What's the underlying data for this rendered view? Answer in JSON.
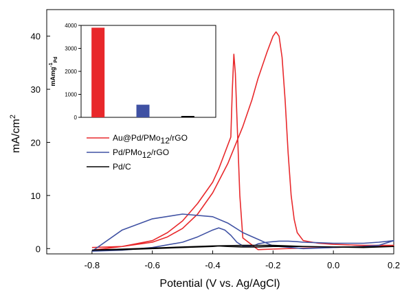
{
  "chart_data": [
    {
      "type": "line",
      "xlabel": "Potential (V vs. Ag/AgCl)",
      "ylabel": "mA/cm",
      "ylabel_sup": "2",
      "xlim": [
        -0.95,
        0.2
      ],
      "ylim": [
        -1,
        45
      ],
      "xticks": [
        -0.8,
        -0.6,
        -0.4,
        -0.2,
        0.0,
        0.2
      ],
      "xtick_labels": [
        "-0.8",
        "-0.6",
        "-0.4",
        "-0.2",
        "0.0",
        "0.2"
      ],
      "yticks": [
        0,
        10,
        20,
        30,
        40
      ],
      "ytick_labels": [
        "0",
        "10",
        "20",
        "30",
        "40"
      ],
      "grid": false,
      "legend_position": "middle-left",
      "series": [
        {
          "name_main": "Au@Pd/PMo",
          "name_sub": "12",
          "name_tail": "/rGO",
          "color": "#e8282b",
          "x": [
            -0.8,
            -0.7,
            -0.6,
            -0.55,
            -0.5,
            -0.45,
            -0.4,
            -0.35,
            -0.3,
            -0.27,
            -0.25,
            -0.22,
            -0.2,
            -0.19,
            -0.18,
            -0.17,
            -0.16,
            -0.15,
            -0.14,
            -0.13,
            -0.12,
            -0.1,
            -0.05,
            0.0,
            0.1,
            0.2,
            0.1,
            0.0,
            -0.1,
            -0.2,
            -0.25,
            -0.3,
            -0.31,
            -0.32,
            -0.325,
            -0.33,
            -0.335,
            -0.34,
            -0.36,
            -0.38,
            -0.4,
            -0.45,
            -0.5,
            -0.55,
            -0.6,
            -0.7,
            -0.8
          ],
          "y": [
            0.2,
            0.4,
            1.2,
            2.2,
            3.8,
            6.5,
            10.5,
            16.0,
            23.0,
            28.0,
            32.0,
            37.0,
            40.0,
            40.8,
            40.0,
            36.0,
            28.0,
            18.0,
            10.0,
            5.5,
            3.0,
            1.5,
            1.0,
            0.8,
            0.6,
            0.6,
            0.4,
            0.2,
            0.1,
            -0.1,
            -0.2,
            2.0,
            10.0,
            25.0,
            33.0,
            36.6,
            30.0,
            21.0,
            18.0,
            15.0,
            12.5,
            8.5,
            5.2,
            3.0,
            1.5,
            0.4,
            -0.3
          ]
        },
        {
          "name_main": "Pd/PMo",
          "name_sub": "12",
          "name_tail": "/rGO",
          "color": "#3f51a3",
          "x": [
            -0.8,
            -0.7,
            -0.6,
            -0.5,
            -0.45,
            -0.4,
            -0.38,
            -0.36,
            -0.34,
            -0.32,
            -0.3,
            -0.28,
            -0.26,
            -0.25,
            -0.22,
            -0.2,
            -0.18,
            -0.15,
            -0.12,
            -0.1,
            -0.05,
            0.0,
            0.05,
            0.1,
            0.15,
            0.2,
            0.15,
            0.1,
            0.0,
            -0.1,
            -0.2,
            -0.3,
            -0.35,
            -0.4,
            -0.5,
            -0.6,
            -0.7,
            -0.8
          ],
          "y": [
            -0.5,
            -0.3,
            0.2,
            1.2,
            2.2,
            3.5,
            3.9,
            3.5,
            2.5,
            1.2,
            0.5,
            0.5,
            0.6,
            0.9,
            1.2,
            1.3,
            1.4,
            1.4,
            1.3,
            1.2,
            1.1,
            1.0,
            1.0,
            1.0,
            1.2,
            1.5,
            0.6,
            0.4,
            0.2,
            0.0,
            0.5,
            3.0,
            4.8,
            6.0,
            6.5,
            5.6,
            3.5,
            -0.5
          ]
        },
        {
          "name_main": "Pd/C",
          "name_sub": "",
          "name_tail": "",
          "color": "#000000",
          "x": [
            -0.8,
            -0.7,
            -0.6,
            -0.5,
            -0.45,
            -0.4,
            -0.38,
            -0.35,
            -0.3,
            -0.25,
            -0.2,
            -0.1,
            0.0,
            0.1,
            0.2,
            0.1,
            0.0,
            -0.1,
            -0.2,
            -0.3,
            -0.4,
            -0.5,
            -0.6,
            -0.7,
            -0.8
          ],
          "y": [
            -0.3,
            -0.2,
            0.0,
            0.2,
            0.3,
            0.4,
            0.5,
            0.4,
            0.3,
            0.3,
            0.4,
            0.4,
            0.3,
            0.3,
            0.4,
            0.2,
            0.3,
            0.4,
            0.6,
            0.6,
            0.5,
            0.3,
            0.1,
            -0.1,
            -0.3
          ]
        }
      ]
    },
    {
      "type": "bar",
      "role": "inset",
      "ylabel_main": "mAmg",
      "ylabel_sup": "-1",
      "ylabel_sub": "Pd",
      "ylim": [
        0,
        4000
      ],
      "yticks": [
        0,
        1000,
        2000,
        3000,
        4000
      ],
      "ytick_labels": [
        "0",
        "1000",
        "2000",
        "3000",
        "4000"
      ],
      "values": [
        3900,
        550,
        60
      ],
      "colors": [
        "#e8282b",
        "#3f51a3",
        "#000000"
      ]
    }
  ]
}
